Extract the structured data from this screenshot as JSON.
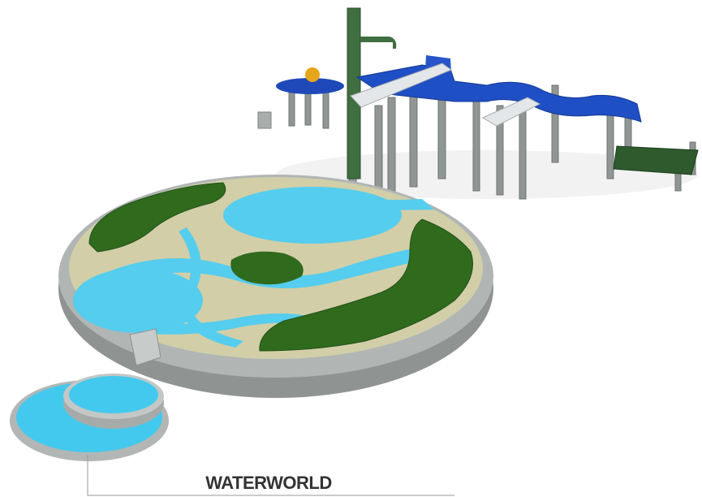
{
  "caption": {
    "title": "WATERWORLD"
  }
}
